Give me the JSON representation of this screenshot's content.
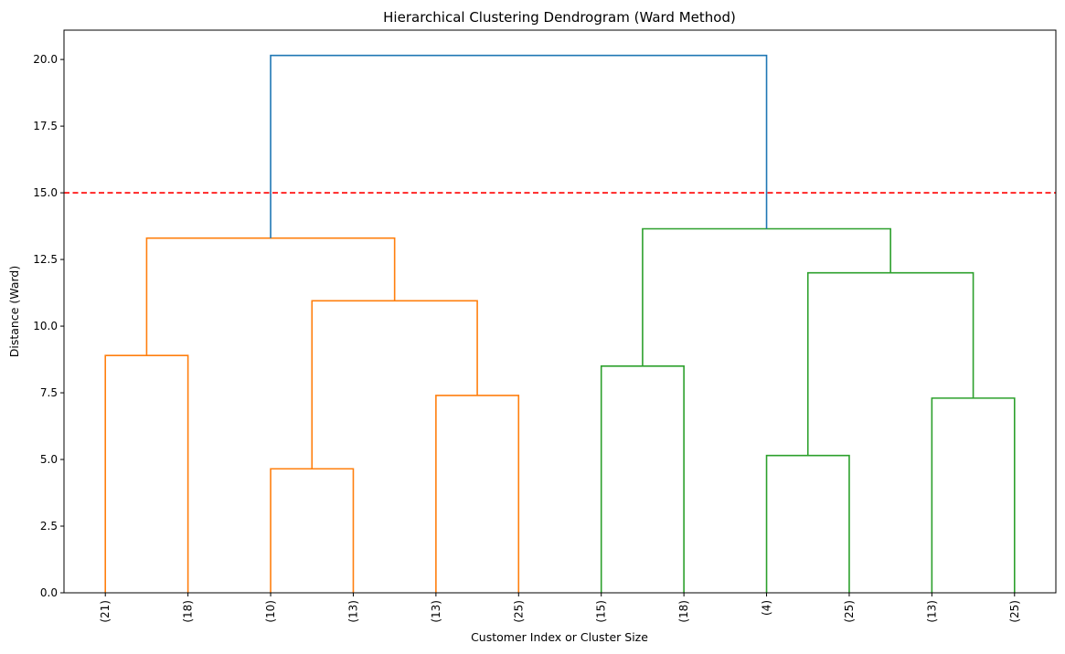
{
  "chart_data": {
    "type": "dendrogram",
    "title": "Hierarchical Clustering Dendrogram (Ward Method)",
    "xlabel": "Customer Index or Cluster Size",
    "ylabel": "Distance (Ward)",
    "ylim": [
      0,
      21.1
    ],
    "yticks": [
      0.0,
      2.5,
      5.0,
      7.5,
      10.0,
      12.5,
      15.0,
      17.5,
      20.0
    ],
    "ytick_labels": [
      "0.0",
      "2.5",
      "5.0",
      "7.5",
      "10.0",
      "12.5",
      "15.0",
      "17.5",
      "20.0"
    ],
    "leaves": [
      "(21)",
      "(18)",
      "(10)",
      "(13)",
      "(13)",
      "(25)",
      "(15)",
      "(18)",
      "(4)",
      "(25)",
      "(13)",
      "(25)"
    ],
    "merges": [
      {
        "left": 0,
        "right": 1,
        "height": 8.9,
        "color": "#ff7f0e"
      },
      {
        "left": 2,
        "right": 3,
        "height": 4.65,
        "color": "#ff7f0e"
      },
      {
        "left": 4,
        "right": 5,
        "height": 7.4,
        "color": "#ff7f0e"
      },
      {
        "left": 13,
        "right": 14,
        "height": 10.95,
        "color": "#ff7f0e"
      },
      {
        "left": 12,
        "right": 15,
        "height": 13.3,
        "color": "#ff7f0e"
      },
      {
        "left": 6,
        "right": 7,
        "height": 8.5,
        "color": "#2ca02c"
      },
      {
        "left": 8,
        "right": 9,
        "height": 5.15,
        "color": "#2ca02c"
      },
      {
        "left": 10,
        "right": 11,
        "height": 7.3,
        "color": "#2ca02c"
      },
      {
        "left": 18,
        "right": 19,
        "height": 12.0,
        "color": "#2ca02c"
      },
      {
        "left": 17,
        "right": 20,
        "height": 13.65,
        "color": "#2ca02c"
      },
      {
        "left": 16,
        "right": 21,
        "height": 20.15,
        "color": "#1f77b4"
      }
    ],
    "threshold": {
      "value": 15.0,
      "color": "#ff0000",
      "style": "dashed"
    },
    "grid": false
  }
}
